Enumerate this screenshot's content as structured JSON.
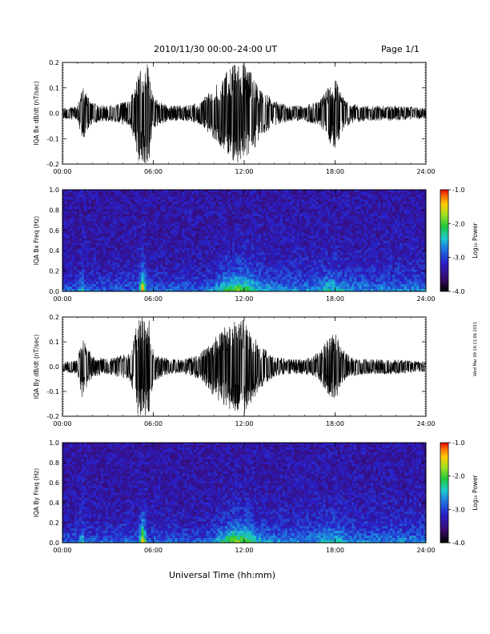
{
  "header": {
    "title": "2010/11/30   00:00–24:00 UT",
    "page": "Page 1/1"
  },
  "footer": {
    "xlabel": "Universal Time (hh:mm)"
  },
  "side_note": "Wed Mar 09 14:11:06 2011",
  "colorbar": {
    "label": "Log₁₀ Power",
    "ticks": [
      "-1.0",
      "-2.0",
      "-3.0",
      "-4.0"
    ]
  },
  "x_ticks": [
    "00:00",
    "06:00",
    "12:00",
    "18:00",
    "24:00"
  ],
  "chart_data": [
    {
      "id": "bx-wave",
      "type": "line",
      "ylabel": "IQA Bx dB/dt (nT/sec)",
      "xlim": [
        0,
        24
      ],
      "ylim": [
        -0.2,
        0.2
      ],
      "y_ticks": [
        "0.2",
        "0.1",
        "0.0",
        "-0.1",
        "-0.2"
      ],
      "x": [
        0,
        1,
        1.3,
        2,
        3,
        4.5,
        5.0,
        5.3,
        5.7,
        6,
        7,
        8,
        9,
        10,
        10.5,
        11,
        11.5,
        12,
        12.5,
        13,
        14,
        15,
        16,
        17,
        17.7,
        18,
        18.5,
        19,
        20,
        22,
        24
      ],
      "values": [
        0.02,
        0.03,
        0.11,
        0.04,
        0.03,
        0.05,
        0.2,
        0.2,
        0.2,
        0.06,
        0.03,
        0.03,
        0.04,
        0.1,
        0.14,
        0.18,
        0.2,
        0.2,
        0.16,
        0.1,
        0.05,
        0.03,
        0.03,
        0.05,
        0.12,
        0.14,
        0.07,
        0.04,
        0.03,
        0.03,
        0.02
      ]
    },
    {
      "id": "bx-spec",
      "type": "heatmap",
      "ylabel": "IQA Bx Freq (Hz)",
      "xlim": [
        0,
        24
      ],
      "ylim": [
        0.0,
        1.0
      ],
      "y_ticks": [
        "1.0",
        "0.8",
        "0.6",
        "0.4",
        "0.2",
        "0.0"
      ],
      "zlim": [
        -4.0,
        -1.0
      ],
      "zlabel": "Log₁₀ Power"
    },
    {
      "id": "by-wave",
      "type": "line",
      "ylabel": "IQA By dB/dt (nT/sec)",
      "xlim": [
        0,
        24
      ],
      "ylim": [
        -0.2,
        0.2
      ],
      "y_ticks": [
        "0.2",
        "0.1",
        "0.0",
        "-0.1",
        "-0.2"
      ],
      "x": [
        0,
        1,
        1.3,
        2,
        3,
        4.5,
        5.0,
        5.3,
        5.7,
        6,
        7,
        8,
        9,
        10,
        10.5,
        11,
        11.5,
        12,
        12.5,
        13,
        14,
        15,
        16,
        17,
        17.7,
        18,
        18.5,
        19,
        20,
        22,
        24
      ],
      "values": [
        0.02,
        0.03,
        0.13,
        0.04,
        0.03,
        0.06,
        0.2,
        0.2,
        0.2,
        0.06,
        0.03,
        0.03,
        0.05,
        0.12,
        0.15,
        0.17,
        0.2,
        0.19,
        0.15,
        0.09,
        0.04,
        0.03,
        0.03,
        0.06,
        0.13,
        0.14,
        0.07,
        0.04,
        0.03,
        0.03,
        0.02
      ]
    },
    {
      "id": "by-spec",
      "type": "heatmap",
      "ylabel": "IQA By Freq (Hz)",
      "xlim": [
        0,
        24
      ],
      "ylim": [
        0.0,
        1.0
      ],
      "y_ticks": [
        "1.0",
        "0.8",
        "0.6",
        "0.4",
        "0.2",
        "0.0"
      ],
      "zlim": [
        -4.0,
        -1.0
      ],
      "zlabel": "Log₁₀ Power"
    }
  ]
}
